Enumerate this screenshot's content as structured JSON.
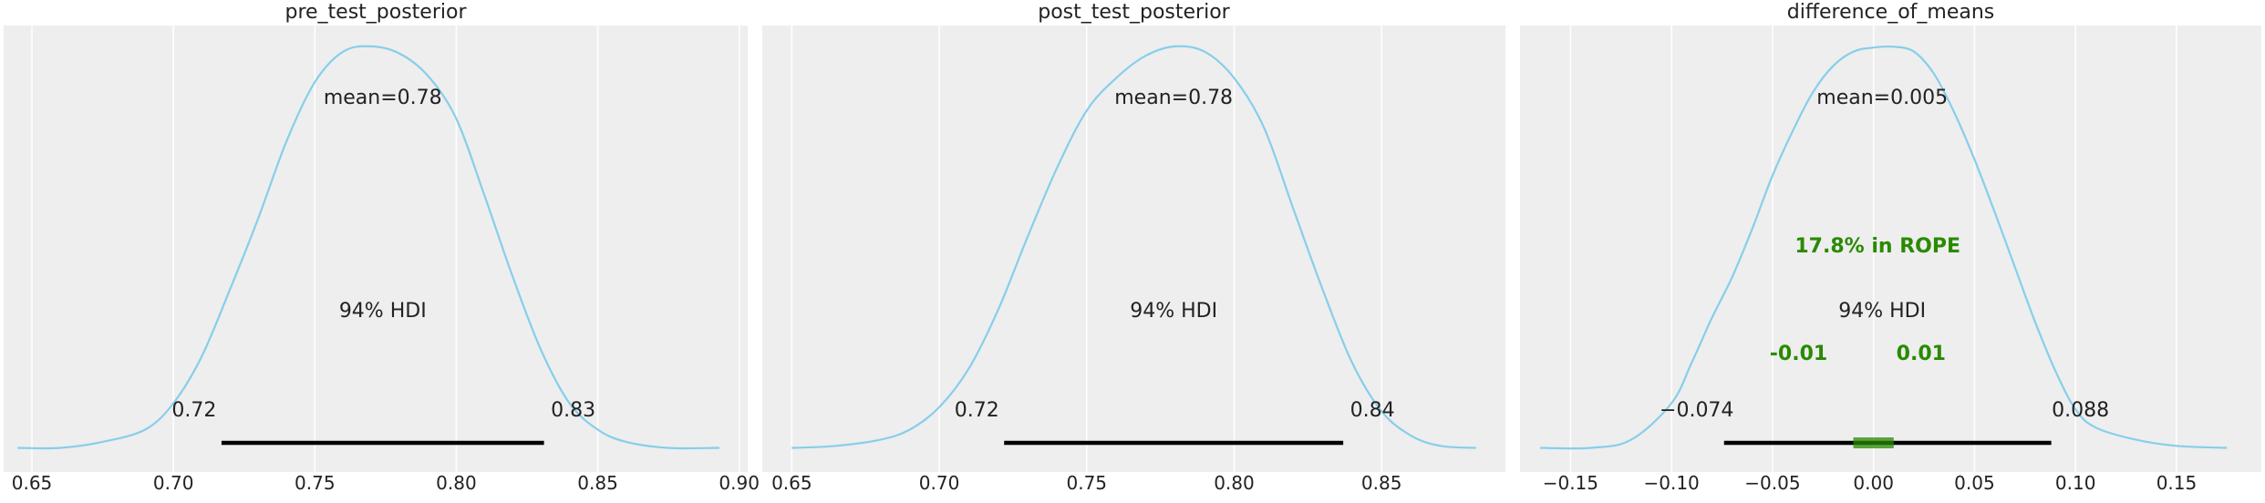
{
  "chart_data": [
    {
      "type": "density",
      "title": "pre_test_posterior",
      "xlim": [
        0.64,
        0.903
      ],
      "xticks": [
        0.65,
        0.7,
        0.75,
        0.8,
        0.85,
        0.9
      ],
      "xtick_labels": [
        "0.65",
        "0.70",
        "0.75",
        "0.80",
        "0.85",
        "0.90"
      ],
      "density_points": [
        [
          0.645,
          0.01
        ],
        [
          0.66,
          0.01
        ],
        [
          0.675,
          0.025
        ],
        [
          0.69,
          0.055
        ],
        [
          0.7,
          0.12
        ],
        [
          0.71,
          0.235
        ],
        [
          0.72,
          0.4
        ],
        [
          0.73,
          0.575
        ],
        [
          0.74,
          0.765
        ],
        [
          0.75,
          0.91
        ],
        [
          0.76,
          0.985
        ],
        [
          0.77,
          0.998
        ],
        [
          0.78,
          0.98
        ],
        [
          0.79,
          0.925
        ],
        [
          0.8,
          0.82
        ],
        [
          0.81,
          0.63
        ],
        [
          0.82,
          0.43
        ],
        [
          0.83,
          0.25
        ],
        [
          0.84,
          0.12
        ],
        [
          0.85,
          0.055
        ],
        [
          0.86,
          0.025
        ],
        [
          0.875,
          0.01
        ],
        [
          0.893,
          0.01
        ]
      ],
      "mean_label": "mean=0.78",
      "hdi": [
        0.717,
        0.831
      ],
      "hdi_label": "94% HDI",
      "hdi_low_label": "0.72",
      "hdi_high_label": "0.83",
      "grid": true
    },
    {
      "type": "density",
      "title": "post_test_posterior",
      "xlim": [
        0.64,
        0.892
      ],
      "xticks": [
        0.65,
        0.7,
        0.75,
        0.8,
        0.85
      ],
      "xtick_labels": [
        "0.65",
        "0.70",
        "0.75",
        "0.80",
        "0.85"
      ],
      "density_points": [
        [
          0.65,
          0.01
        ],
        [
          0.665,
          0.015
        ],
        [
          0.68,
          0.03
        ],
        [
          0.69,
          0.055
        ],
        [
          0.7,
          0.11
        ],
        [
          0.71,
          0.205
        ],
        [
          0.72,
          0.35
        ],
        [
          0.73,
          0.53
        ],
        [
          0.74,
          0.7
        ],
        [
          0.75,
          0.84
        ],
        [
          0.76,
          0.92
        ],
        [
          0.77,
          0.975
        ],
        [
          0.78,
          0.998
        ],
        [
          0.79,
          0.985
        ],
        [
          0.8,
          0.92
        ],
        [
          0.81,
          0.8
        ],
        [
          0.82,
          0.6
        ],
        [
          0.83,
          0.4
        ],
        [
          0.84,
          0.22
        ],
        [
          0.85,
          0.1
        ],
        [
          0.86,
          0.04
        ],
        [
          0.87,
          0.015
        ],
        [
          0.882,
          0.01
        ]
      ],
      "mean_label": "mean=0.78",
      "hdi": [
        0.722,
        0.837
      ],
      "hdi_label": "94% HDI",
      "hdi_low_label": "0.72",
      "hdi_high_label": "0.84",
      "grid": true
    },
    {
      "type": "density",
      "title": "difference_of_means",
      "xlim": [
        -0.175,
        0.192
      ],
      "xticks": [
        -0.15,
        -0.1,
        -0.05,
        0.0,
        0.05,
        0.1,
        0.15
      ],
      "xtick_labels": [
        "−0.15",
        "−0.10",
        "−0.05",
        "0.00",
        "0.05",
        "0.10",
        "0.15"
      ],
      "density_points": [
        [
          -0.165,
          0.01
        ],
        [
          -0.14,
          0.01
        ],
        [
          -0.12,
          0.03
        ],
        [
          -0.1,
          0.12
        ],
        [
          -0.09,
          0.22
        ],
        [
          -0.08,
          0.33
        ],
        [
          -0.07,
          0.43
        ],
        [
          -0.06,
          0.55
        ],
        [
          -0.05,
          0.68
        ],
        [
          -0.04,
          0.79
        ],
        [
          -0.03,
          0.885
        ],
        [
          -0.02,
          0.95
        ],
        [
          -0.01,
          0.985
        ],
        [
          0.0,
          0.995
        ],
        [
          0.01,
          0.997
        ],
        [
          0.02,
          0.985
        ],
        [
          0.03,
          0.93
        ],
        [
          0.04,
          0.835
        ],
        [
          0.05,
          0.72
        ],
        [
          0.06,
          0.59
        ],
        [
          0.07,
          0.455
        ],
        [
          0.08,
          0.32
        ],
        [
          0.09,
          0.2
        ],
        [
          0.1,
          0.105
        ],
        [
          0.11,
          0.06
        ],
        [
          0.13,
          0.03
        ],
        [
          0.15,
          0.015
        ],
        [
          0.175,
          0.01
        ]
      ],
      "mean_label": "mean=0.005",
      "hdi": [
        -0.074,
        0.088
      ],
      "hdi_label": "94% HDI",
      "hdi_low_label": "−0.074",
      "hdi_high_label": "0.088",
      "rope": [
        -0.01,
        0.01
      ],
      "rope_label": "17.8% in ROPE",
      "rope_low_label": "-0.01",
      "rope_high_label": "0.01",
      "grid": true
    }
  ],
  "colors": {
    "plot_background": "#eeeeee",
    "grid": "#ffffff",
    "density_line": "#87ceeb",
    "hdi_line": "#000000",
    "rope": "#2a8a00",
    "text": "#222222"
  }
}
